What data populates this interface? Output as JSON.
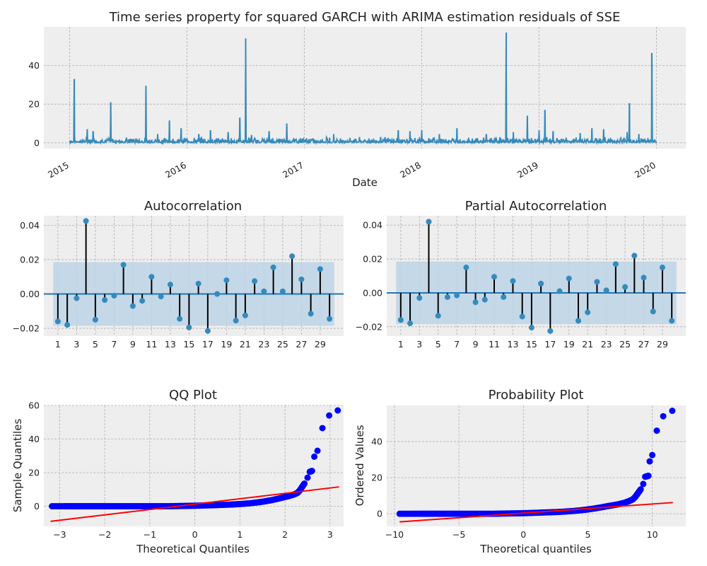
{
  "colors": {
    "axes_bg": "#eeeeee",
    "grid": "#b0b0b0",
    "series": "#348abd",
    "band": "#bcd4e6",
    "stem": "#000000",
    "qq_points": "#0000ff",
    "qq_line": "#ff0000"
  },
  "chart_data": [
    {
      "id": "timeseries",
      "type": "line",
      "title": "Time series property for squared GARCH with ARIMA estimation residuals of SSE",
      "xlabel": "Date",
      "ylabel": "",
      "x_tick_labels": [
        "2015",
        "2016",
        "2017",
        "2018",
        "2019",
        "2020"
      ],
      "y_ticks": [
        0,
        20,
        40
      ],
      "xlim": [
        2014.78,
        2020.25
      ],
      "ylim": [
        -3,
        60
      ],
      "grid": true,
      "baseline_range": [
        0,
        2
      ],
      "spikes": [
        {
          "x": 2015.04,
          "y": 33
        },
        {
          "x": 2015.15,
          "y": 7
        },
        {
          "x": 2015.2,
          "y": 6
        },
        {
          "x": 2015.35,
          "y": 21
        },
        {
          "x": 2015.65,
          "y": 29.5
        },
        {
          "x": 2015.75,
          "y": 4.5
        },
        {
          "x": 2015.85,
          "y": 11.5
        },
        {
          "x": 2015.95,
          "y": 7.5
        },
        {
          "x": 2016.1,
          "y": 4.5
        },
        {
          "x": 2016.2,
          "y": 6.5
        },
        {
          "x": 2016.35,
          "y": 5.5
        },
        {
          "x": 2016.45,
          "y": 13
        },
        {
          "x": 2016.5,
          "y": 54
        },
        {
          "x": 2016.55,
          "y": 4
        },
        {
          "x": 2016.7,
          "y": 6
        },
        {
          "x": 2016.85,
          "y": 10
        },
        {
          "x": 2017.25,
          "y": 4.5
        },
        {
          "x": 2017.65,
          "y": 3
        },
        {
          "x": 2017.8,
          "y": 6.5
        },
        {
          "x": 2017.9,
          "y": 6
        },
        {
          "x": 2018.0,
          "y": 6.5
        },
        {
          "x": 2018.15,
          "y": 4.5
        },
        {
          "x": 2018.3,
          "y": 7.5
        },
        {
          "x": 2018.55,
          "y": 4.5
        },
        {
          "x": 2018.72,
          "y": 57
        },
        {
          "x": 2018.78,
          "y": 5.5
        },
        {
          "x": 2018.9,
          "y": 14
        },
        {
          "x": 2019.0,
          "y": 6.5
        },
        {
          "x": 2019.05,
          "y": 17
        },
        {
          "x": 2019.12,
          "y": 6
        },
        {
          "x": 2019.35,
          "y": 5
        },
        {
          "x": 2019.45,
          "y": 7.5
        },
        {
          "x": 2019.55,
          "y": 7
        },
        {
          "x": 2019.75,
          "y": 5.5
        },
        {
          "x": 2019.77,
          "y": 20.5
        },
        {
          "x": 2019.85,
          "y": 4.5
        },
        {
          "x": 2019.96,
          "y": 46.5
        }
      ]
    },
    {
      "id": "acf",
      "type": "stem",
      "title": "Autocorrelation",
      "xlabel": "",
      "ylabel": "",
      "x_tick_labels": [
        "1",
        "3",
        "5",
        "7",
        "9",
        "11",
        "13",
        "15",
        "17",
        "19",
        "21",
        "23",
        "25",
        "27",
        "29"
      ],
      "x_ticks": [
        1,
        3,
        5,
        7,
        9,
        11,
        13,
        15,
        17,
        19,
        21,
        23,
        25,
        27,
        29
      ],
      "y_ticks": [
        -0.02,
        0.0,
        0.02,
        0.04
      ],
      "y_tick_labels": [
        "−0.02",
        "0.00",
        "0.02",
        "0.04"
      ],
      "xlim": [
        -0.5,
        31.5
      ],
      "ylim": [
        -0.0245,
        0.0455
      ],
      "confidence_band": [
        -0.0185,
        0.0185
      ],
      "band_x": [
        0.5,
        30.5
      ],
      "grid": true,
      "lags": [
        1,
        2,
        3,
        4,
        5,
        6,
        7,
        8,
        9,
        10,
        11,
        12,
        13,
        14,
        15,
        16,
        17,
        18,
        19,
        20,
        21,
        22,
        23,
        24,
        25,
        26,
        27,
        28,
        29,
        30
      ],
      "values": [
        -0.016,
        -0.018,
        -0.0025,
        0.0425,
        -0.015,
        -0.0035,
        -0.001,
        0.017,
        -0.007,
        -0.004,
        0.01,
        -0.0015,
        0.0055,
        -0.0145,
        -0.0195,
        0.006,
        -0.0215,
        0.0,
        0.008,
        -0.0155,
        -0.0125,
        0.0075,
        0.0015,
        0.0155,
        0.0015,
        0.022,
        0.0085,
        -0.0115,
        0.0145,
        -0.0145
      ]
    },
    {
      "id": "pacf",
      "type": "stem",
      "title": "Partial Autocorrelation",
      "xlabel": "",
      "ylabel": "",
      "x_tick_labels": [
        "1",
        "3",
        "5",
        "7",
        "9",
        "11",
        "13",
        "15",
        "17",
        "19",
        "21",
        "23",
        "25",
        "27",
        "29"
      ],
      "x_ticks": [
        1,
        3,
        5,
        7,
        9,
        11,
        13,
        15,
        17,
        19,
        21,
        23,
        25,
        27,
        29
      ],
      "y_ticks": [
        -0.02,
        0.0,
        0.02,
        0.04
      ],
      "y_tick_labels": [
        "−0.02",
        "0.00",
        "0.02",
        "0.04"
      ],
      "xlim": [
        -0.5,
        31.5
      ],
      "ylim": [
        -0.0255,
        0.0455
      ],
      "confidence_band": [
        -0.0185,
        0.0185
      ],
      "band_x": [
        0.5,
        30.5
      ],
      "grid": true,
      "lags": [
        1,
        2,
        3,
        4,
        5,
        6,
        7,
        8,
        9,
        10,
        11,
        12,
        13,
        14,
        15,
        16,
        17,
        18,
        19,
        20,
        21,
        22,
        23,
        24,
        25,
        26,
        27,
        28,
        29,
        30
      ],
      "values": [
        -0.016,
        -0.018,
        -0.003,
        0.042,
        -0.0135,
        -0.0025,
        -0.0015,
        0.015,
        -0.0055,
        -0.004,
        0.0095,
        -0.0025,
        0.007,
        -0.014,
        -0.0205,
        0.0055,
        -0.0225,
        0.001,
        0.0085,
        -0.0165,
        -0.0115,
        0.0065,
        0.0015,
        0.017,
        0.0035,
        0.022,
        0.009,
        -0.011,
        0.015,
        -0.0165
      ]
    },
    {
      "id": "qq",
      "type": "scatter",
      "title": "QQ Plot",
      "xlabel": "Theoretical Quantiles",
      "ylabel": "Sample Quantiles",
      "x_ticks": [
        -3,
        -2,
        -1,
        0,
        1,
        2,
        3
      ],
      "x_tick_labels": [
        "−3",
        "−2",
        "−1",
        "0",
        "1",
        "2",
        "3"
      ],
      "y_ticks": [
        0,
        20,
        40,
        60
      ],
      "y_tick_labels": [
        "0",
        "20",
        "40",
        "60"
      ],
      "xlim": [
        -3.35,
        3.3
      ],
      "ylim": [
        -12,
        60
      ],
      "grid": true,
      "fit_line": [
        [
          -3.2,
          -9
        ],
        [
          3.2,
          11.5
        ]
      ],
      "points": [
        [
          -3.17,
          0
        ],
        [
          -2.9,
          0
        ],
        [
          -2.75,
          0
        ],
        [
          -2.6,
          0
        ],
        [
          -2.45,
          0
        ],
        [
          -2.3,
          0
        ],
        [
          -2.15,
          0
        ],
        [
          -2.0,
          0
        ],
        [
          -1.8,
          0
        ],
        [
          -1.6,
          0
        ],
        [
          -1.4,
          0
        ],
        [
          -1.2,
          0
        ],
        [
          -1.0,
          0
        ],
        [
          -0.8,
          0
        ],
        [
          -0.6,
          0
        ],
        [
          -0.4,
          0.1
        ],
        [
          -0.2,
          0.2
        ],
        [
          0.0,
          0.3
        ],
        [
          0.2,
          0.45
        ],
        [
          0.4,
          0.6
        ],
        [
          0.6,
          0.8
        ],
        [
          0.8,
          1.0
        ],
        [
          1.0,
          1.3
        ],
        [
          1.2,
          1.7
        ],
        [
          1.4,
          2.3
        ],
        [
          1.55,
          2.9
        ],
        [
          1.7,
          3.6
        ],
        [
          1.85,
          4.5
        ],
        [
          2.0,
          5.5
        ],
        [
          2.1,
          6.2
        ],
        [
          2.2,
          7.0
        ],
        [
          2.28,
          8.0
        ],
        [
          2.33,
          9.5
        ],
        [
          2.38,
          11.5
        ],
        [
          2.43,
          13.5
        ],
        [
          2.5,
          17
        ],
        [
          2.55,
          20.5
        ],
        [
          2.6,
          21
        ],
        [
          2.65,
          29.5
        ],
        [
          2.72,
          33
        ],
        [
          2.83,
          46.5
        ],
        [
          2.98,
          54
        ],
        [
          3.17,
          57
        ]
      ]
    },
    {
      "id": "probplot",
      "type": "scatter",
      "title": "Probability Plot",
      "xlabel": "Theoretical quantiles",
      "ylabel": "Ordered Values",
      "x_ticks": [
        -10,
        -5,
        0,
        5,
        10
      ],
      "x_tick_labels": [
        "−10",
        "−5",
        "0",
        "5",
        "10"
      ],
      "y_ticks": [
        0,
        20,
        40
      ],
      "y_tick_labels": [
        "0",
        "20",
        "40"
      ],
      "xlim": [
        -10.6,
        12.6
      ],
      "ylim": [
        -7,
        60
      ],
      "grid": true,
      "fit_line": [
        [
          -9.6,
          -4.5
        ],
        [
          11.6,
          6.2
        ]
      ],
      "points": [
        [
          -9.6,
          0
        ],
        [
          -8.7,
          0
        ],
        [
          -8.0,
          0
        ],
        [
          -7.4,
          0
        ],
        [
          -6.8,
          0
        ],
        [
          -6.2,
          0
        ],
        [
          -5.5,
          0
        ],
        [
          -4.8,
          0
        ],
        [
          -4.0,
          0
        ],
        [
          -3.2,
          0
        ],
        [
          -2.4,
          0
        ],
        [
          -1.6,
          0.1
        ],
        [
          -0.8,
          0.2
        ],
        [
          0.0,
          0.3
        ],
        [
          0.8,
          0.5
        ],
        [
          1.6,
          0.7
        ],
        [
          2.4,
          0.9
        ],
        [
          3.2,
          1.2
        ],
        [
          4.0,
          1.6
        ],
        [
          4.8,
          2.2
        ],
        [
          5.4,
          2.8
        ],
        [
          6.0,
          3.5
        ],
        [
          6.6,
          4.3
        ],
        [
          7.2,
          5.0
        ],
        [
          7.8,
          6.0
        ],
        [
          8.2,
          7.0
        ],
        [
          8.5,
          8.0
        ],
        [
          8.7,
          9.5
        ],
        [
          8.9,
          11.5
        ],
        [
          9.1,
          13.5
        ],
        [
          9.3,
          16.5
        ],
        [
          9.45,
          20.5
        ],
        [
          9.7,
          21
        ],
        [
          9.8,
          29
        ],
        [
          10.0,
          32.5
        ],
        [
          10.35,
          46
        ],
        [
          10.85,
          54
        ],
        [
          11.55,
          57
        ]
      ]
    }
  ]
}
